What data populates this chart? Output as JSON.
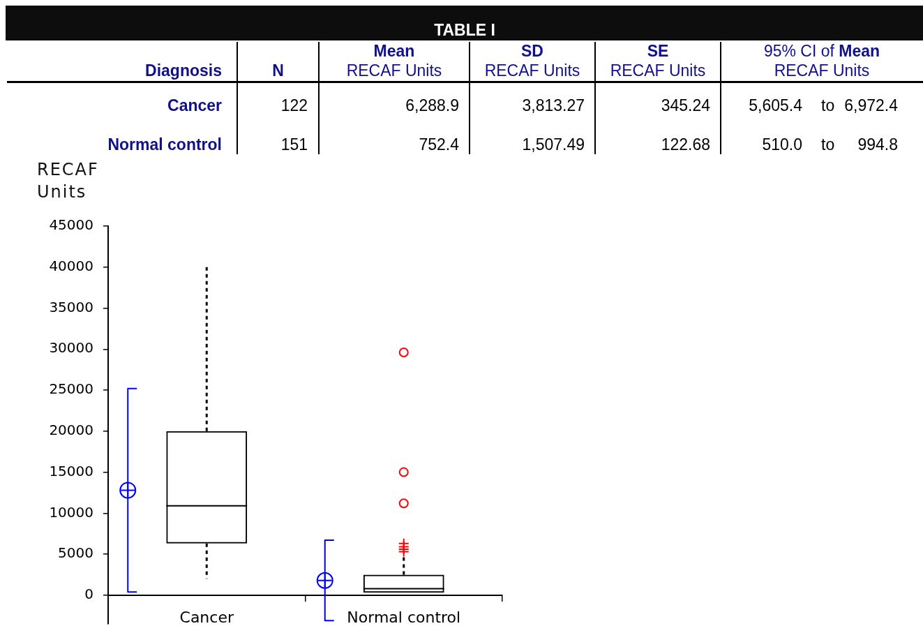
{
  "chart_data": [
    {
      "type": "other",
      "title": "TABLE I",
      "categories": [
        "Diagnosis",
        "N",
        "Mean\nRECAF Units",
        "SD\nRECAF Units",
        "SE\nRECAF Units",
        "95% CI of Mean\nRECAF Units",
        null,
        null
      ],
      "cell_labels": [
        [
          "Cancer",
          "122",
          "6,288.9",
          "3,813.27",
          "345.24",
          "5,605.4",
          "to",
          "6,972.4"
        ],
        [
          "Normal control",
          "151",
          "752.4",
          "1,507.49",
          "122.68",
          "510.0",
          "to",
          "994.8"
        ]
      ]
    },
    {
      "type": "box",
      "ylabel": "RECAF Units",
      "categories": [
        "Cancer",
        "Normal control"
      ],
      "ylim": [
        -3500,
        45000
      ],
      "yticks": [
        0,
        5000,
        10000,
        15000,
        20000,
        25000,
        30000,
        35000,
        40000,
        45000
      ],
      "marker": "circle",
      "series": [
        {
          "type": "box",
          "color": "#000000",
          "boxes": [
            {
              "low": 2000,
              "q1": 6300,
              "median": 10900,
              "q3": 20000,
              "high": 40200
            },
            {
              "low": 300,
              "q1": 300,
              "median": 800,
              "q3": 2500,
              "high": 4800,
              "outliers": [
                5300,
                5600,
                5900,
                6300,
                11200,
                15000,
                29600
              ]
            }
          ]
        },
        {
          "type": "scatter",
          "color": "#0000ff",
          "x": [
            "Cancer",
            "Normal control"
          ],
          "values": [
            12800,
            1800
          ],
          "errors": [
            12400,
            4900
          ]
        }
      ]
    }
  ]
}
